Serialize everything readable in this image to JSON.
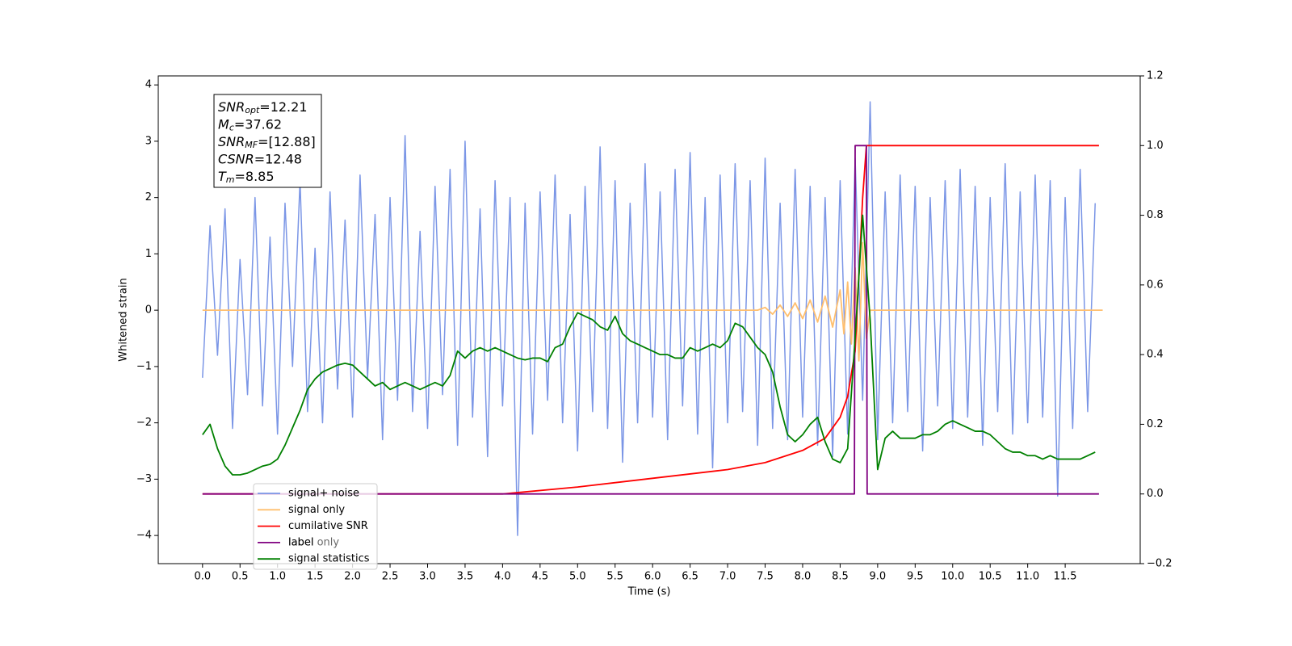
{
  "chart_data": {
    "type": "line",
    "xlabel": "Time (s)",
    "ylabel": "Whitened strain",
    "xlim": [
      -0.59,
      12.5
    ],
    "ylim": [
      -4.5,
      4.16
    ],
    "y2lim": [
      -0.2,
      1.2
    ],
    "xticks": [
      {
        "value": 0,
        "label": "0.0"
      },
      0.5,
      {
        "value": 1,
        "label": "1.0"
      },
      1.5,
      {
        "value": 2,
        "label": "2.0"
      },
      2.5,
      {
        "value": 3,
        "label": "3.0"
      },
      3.5,
      {
        "value": 4,
        "label": "4.0"
      },
      4.5,
      {
        "value": 5,
        "label": "5.0"
      },
      5.5,
      {
        "value": 6,
        "label": "6.0"
      },
      6.5,
      {
        "value": 7,
        "label": "7.0"
      },
      7.5,
      {
        "value": 8,
        "label": "8.0"
      },
      8.5,
      {
        "value": 9,
        "label": "9.0"
      },
      9.5,
      {
        "value": 10,
        "label": "10.0"
      },
      10.5,
      {
        "value": 11,
        "label": "11.0"
      },
      11.5
    ],
    "yticks": [
      {
        "value": -4,
        "label": "−4"
      },
      {
        "value": -3,
        "label": "−3"
      },
      {
        "value": -2,
        "label": "−2"
      },
      {
        "value": -1,
        "label": "−1"
      },
      0,
      1,
      2,
      3,
      4
    ],
    "y2ticks": [
      {
        "value": -0.2,
        "label": "−0.2"
      },
      {
        "value": 0,
        "label": "0.0"
      },
      0.2,
      0.4,
      0.6,
      0.8,
      {
        "value": 1,
        "label": "1.0"
      },
      {
        "value": 1.2,
        "label": "1.2"
      }
    ],
    "legend": "lower left",
    "ghost_legend": "label only",
    "textbox": [
      {
        "name": "SNR",
        "sub": "opt",
        "rest": "=12.21"
      },
      {
        "name": "M",
        "sub": "c",
        "rest": "=37.62"
      },
      {
        "name": "SNR",
        "sub": "MF",
        "rest": "=[12.88]"
      },
      {
        "name": "CSNR",
        "rest": "=12.48"
      },
      {
        "name": "T",
        "sub": "m",
        "rest": "=8.85"
      }
    ],
    "x": [
      0,
      0.1,
      0.2,
      0.3,
      0.4,
      0.5,
      0.6,
      0.7,
      0.8,
      0.9,
      1,
      1.1,
      1.2,
      1.3,
      1.4,
      1.5,
      1.6,
      1.7,
      1.8,
      1.9,
      2,
      2.1,
      2.2,
      2.3,
      2.4,
      2.5,
      2.6,
      2.7,
      2.8,
      2.9,
      3,
      3.1,
      3.2,
      3.3,
      3.4,
      3.5,
      3.6,
      3.7,
      3.8,
      3.9,
      4,
      4.1,
      4.2,
      4.3,
      4.4,
      4.5,
      4.6,
      4.7,
      4.8,
      4.9,
      5,
      5.1,
      5.2,
      5.3,
      5.4,
      5.5,
      5.6,
      5.7,
      5.8,
      5.9,
      6,
      6.1,
      6.2,
      6.3,
      6.4,
      6.5,
      6.6,
      6.7,
      6.8,
      6.9,
      7,
      7.1,
      7.2,
      7.3,
      7.4,
      7.5,
      7.6,
      7.7,
      7.8,
      7.9,
      8,
      8.1,
      8.2,
      8.3,
      8.4,
      8.5,
      8.6,
      8.7,
      8.8,
      8.9,
      9,
      9.1,
      9.2,
      9.3,
      9.4,
      9.5,
      9.6,
      9.7,
      9.8,
      9.9,
      10,
      10.1,
      10.2,
      10.3,
      10.4,
      10.5,
      10.6,
      10.7,
      10.8,
      10.9,
      11,
      11.1,
      11.2,
      11.3,
      11.4,
      11.5,
      11.6,
      11.7,
      11.8,
      11.9
    ],
    "series": [
      {
        "name": "signal+ noise",
        "color": "#7b96e6",
        "values": [
          -1.2,
          1.5,
          -0.8,
          1.8,
          -2.1,
          0.9,
          -1.5,
          2.0,
          -1.7,
          1.3,
          -2.2,
          1.9,
          -1.0,
          2.3,
          -1.8,
          1.1,
          -2.0,
          2.1,
          -1.4,
          1.6,
          -1.9,
          2.4,
          -1.2,
          1.7,
          -2.3,
          2.0,
          -1.6,
          3.1,
          -1.8,
          1.4,
          -2.1,
          2.2,
          -1.5,
          2.5,
          -2.4,
          3.0,
          -1.9,
          1.8,
          -2.6,
          2.3,
          -1.7,
          2.0,
          -4.0,
          1.9,
          -2.2,
          2.1,
          -1.6,
          2.4,
          -2.0,
          1.7,
          -2.5,
          2.2,
          -1.8,
          2.9,
          -2.1,
          2.3,
          -2.7,
          1.9,
          -2.0,
          2.6,
          -1.9,
          2.1,
          -2.3,
          2.5,
          -1.7,
          2.8,
          -2.2,
          2.0,
          -2.8,
          2.4,
          -2.0,
          2.6,
          -1.8,
          2.3,
          -2.4,
          2.7,
          -2.1,
          1.9,
          -2.3,
          2.5,
          -1.9,
          2.2,
          -2.4,
          2.0,
          -2.6,
          2.3,
          -2.2,
          2.7,
          -1.6,
          3.7,
          -2.3,
          2.1,
          -2.0,
          2.4,
          -1.8,
          2.2,
          -2.5,
          2.0,
          -1.7,
          2.3,
          -2.1,
          2.5,
          -1.9,
          2.2,
          -2.4,
          2.0,
          -1.8,
          2.6,
          -2.2,
          2.1,
          -2.0,
          2.4,
          -1.9,
          2.3,
          -3.3,
          2.0,
          -2.1,
          2.5,
          -1.8,
          1.9
        ]
      },
      {
        "name": "signal only",
        "color": "#ffbf6e",
        "x": [
          0,
          7.4,
          7.5,
          7.6,
          7.7,
          7.8,
          7.9,
          8.0,
          8.1,
          8.2,
          8.3,
          8.4,
          8.5,
          8.55,
          8.6,
          8.65,
          8.7,
          8.75,
          8.8,
          8.85,
          8.9,
          12
        ],
        "values": [
          0,
          0,
          0.05,
          -0.07,
          0.09,
          -0.11,
          0.13,
          -0.15,
          0.18,
          -0.21,
          0.25,
          -0.3,
          0.36,
          -0.42,
          0.5,
          -0.6,
          0.75,
          -0.9,
          1.2,
          -0.5,
          0,
          0
        ]
      },
      {
        "name": "cumilative SNR",
        "color": "#ff0000",
        "axis": "y2",
        "x": [
          0,
          4,
          5,
          6,
          7,
          7.5,
          8,
          8.3,
          8.5,
          8.6,
          8.7,
          8.8,
          8.85,
          8.9,
          11.95
        ],
        "values": [
          0,
          0,
          0.02,
          0.045,
          0.07,
          0.09,
          0.125,
          0.16,
          0.22,
          0.28,
          0.41,
          0.85,
          1,
          1,
          1
        ]
      },
      {
        "name": "label",
        "color": "#800080",
        "axis": "y2",
        "x": [
          0,
          8.69,
          8.7,
          8.85,
          8.86,
          11.95
        ],
        "values": [
          0,
          0,
          1,
          1,
          0,
          0
        ]
      },
      {
        "name": "signal statistics",
        "color": "#008000",
        "axis": "y2",
        "values": [
          0.17,
          0.2,
          0.13,
          0.08,
          0.055,
          0.055,
          0.06,
          0.07,
          0.08,
          0.085,
          0.1,
          0.14,
          0.19,
          0.24,
          0.3,
          0.33,
          0.35,
          0.36,
          0.37,
          0.375,
          0.37,
          0.35,
          0.33,
          0.31,
          0.32,
          0.3,
          0.31,
          0.32,
          0.31,
          0.3,
          0.31,
          0.32,
          0.31,
          0.34,
          0.41,
          0.39,
          0.41,
          0.42,
          0.41,
          0.42,
          0.41,
          0.4,
          0.39,
          0.385,
          0.39,
          0.39,
          0.38,
          0.42,
          0.43,
          0.48,
          0.52,
          0.51,
          0.5,
          0.48,
          0.47,
          0.51,
          0.46,
          0.44,
          0.43,
          0.42,
          0.41,
          0.4,
          0.4,
          0.39,
          0.39,
          0.42,
          0.41,
          0.42,
          0.43,
          0.42,
          0.44,
          0.49,
          0.48,
          0.45,
          0.42,
          0.4,
          0.35,
          0.25,
          0.17,
          0.15,
          0.17,
          0.2,
          0.22,
          0.15,
          0.1,
          0.09,
          0.13,
          0.45,
          0.8,
          0.5,
          0.07,
          0.16,
          0.18,
          0.16,
          0.16,
          0.16,
          0.17,
          0.17,
          0.18,
          0.2,
          0.21,
          0.2,
          0.19,
          0.18,
          0.18,
          0.17,
          0.15,
          0.13,
          0.12,
          0.12,
          0.11,
          0.11,
          0.1,
          0.11,
          0.1,
          0.1,
          0.1,
          0.1,
          0.11,
          0.12
        ]
      }
    ]
  }
}
